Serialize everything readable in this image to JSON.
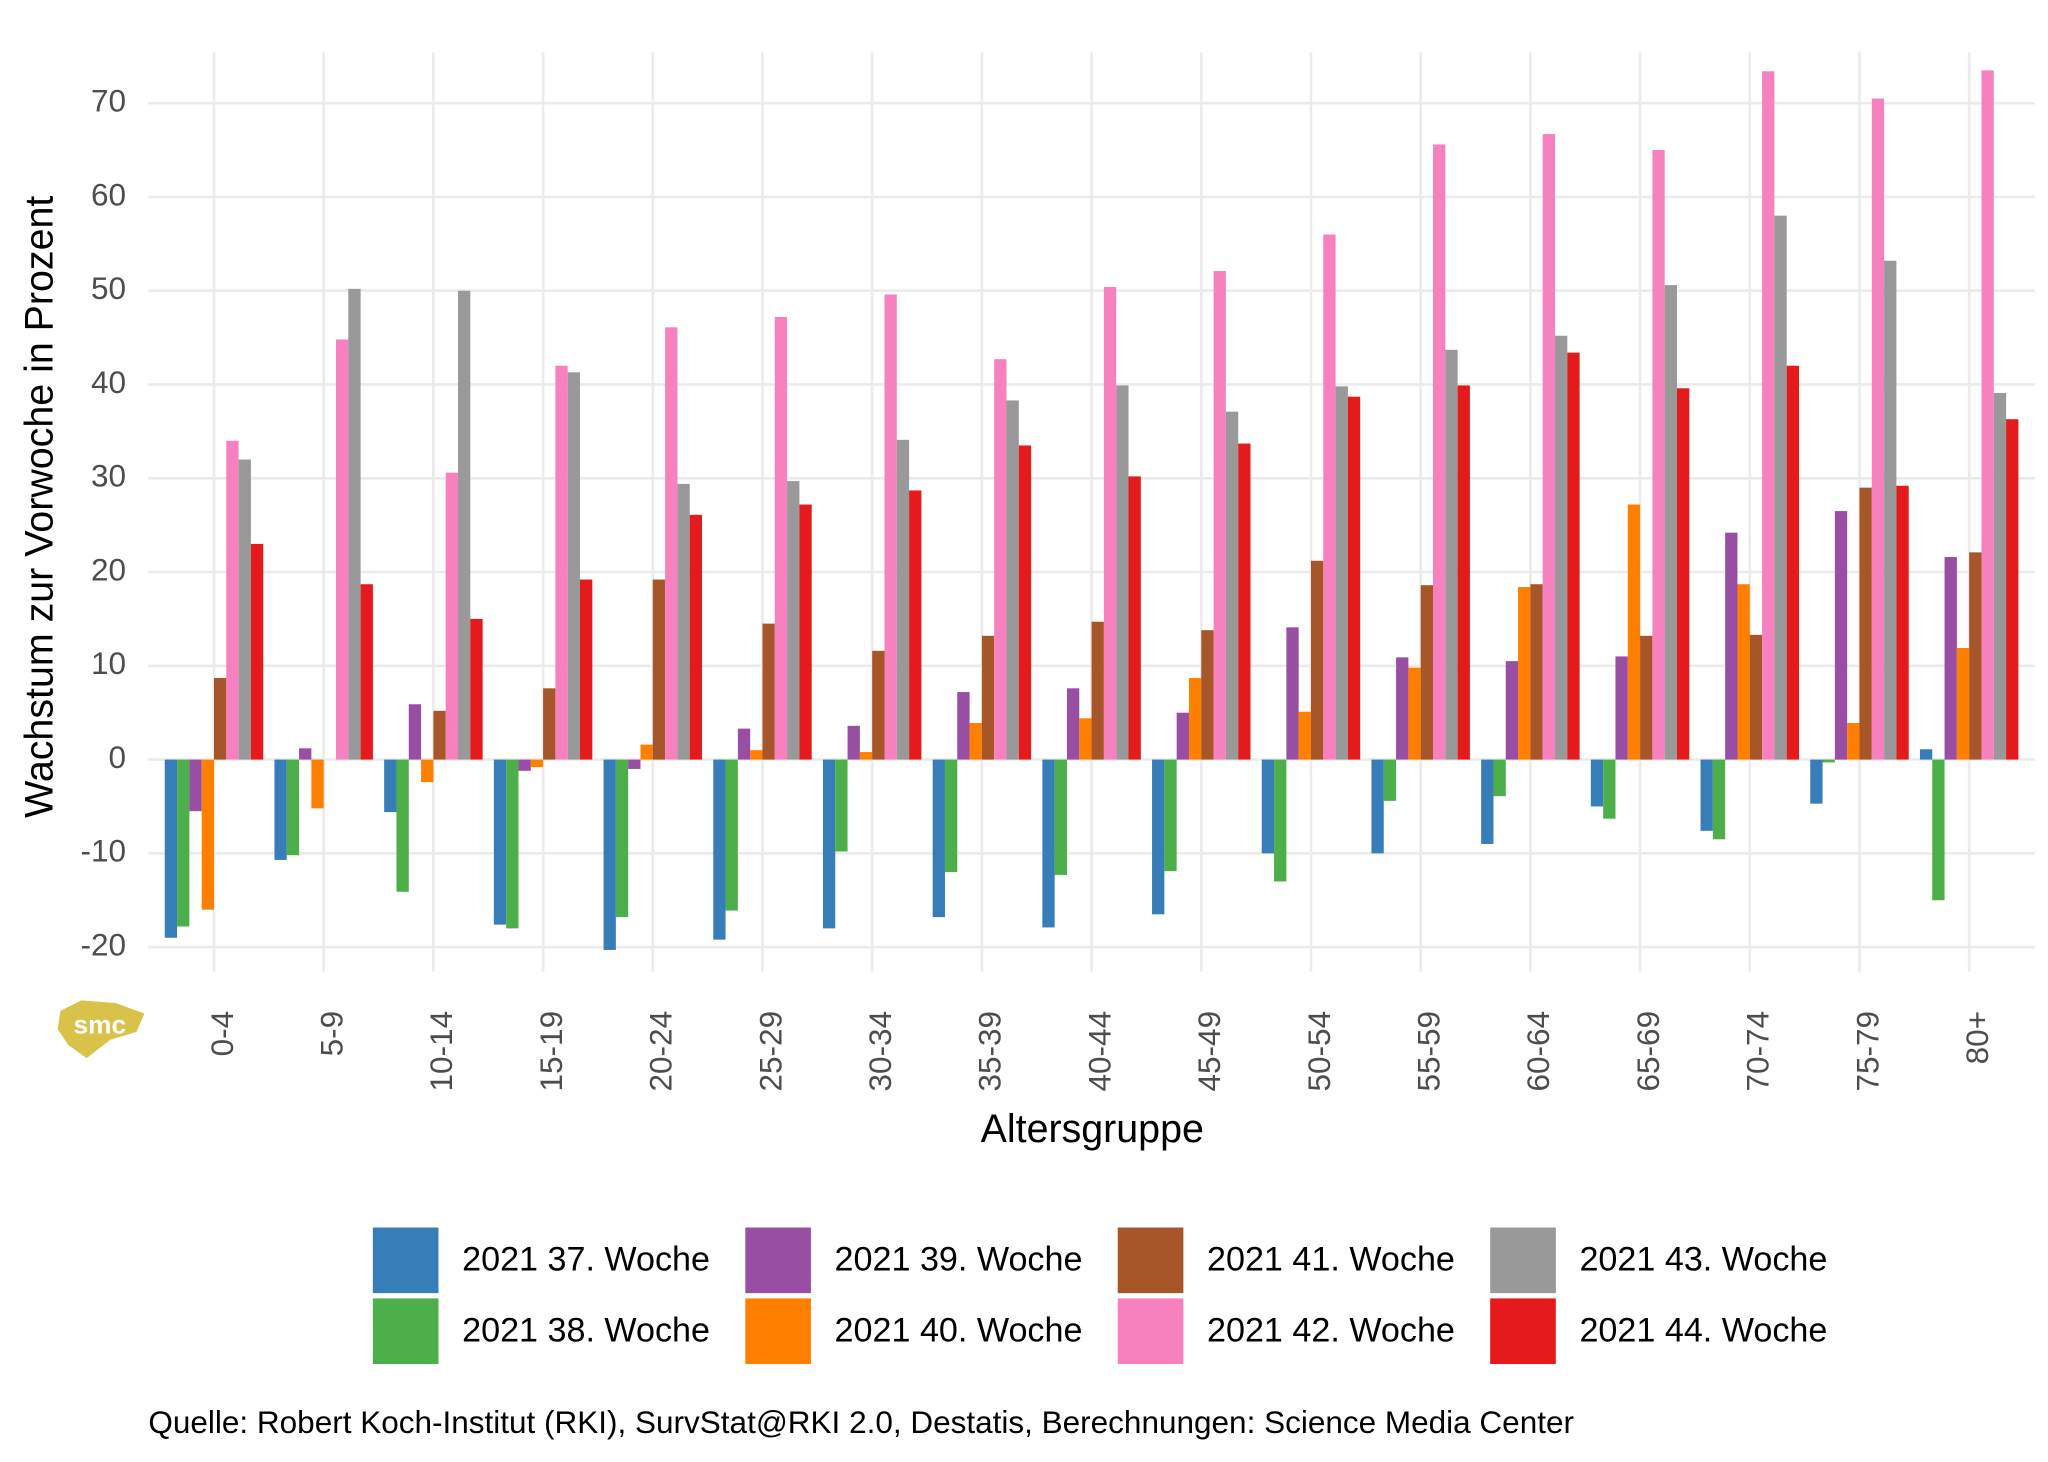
{
  "chart_data": {
    "type": "bar",
    "logo": "smc",
    "x_label": "Altersgruppe",
    "y_label": "Wachstum zur Vorwoche in Prozent",
    "caption": "Quelle: Robert Koch-Institut (RKI), SurvStat@RKI 2.0, Destatis, Berechnungen: Science Media Center",
    "categories": [
      "0-4",
      "5-9",
      "10-14",
      "15-19",
      "20-24",
      "25-29",
      "30-34",
      "35-39",
      "40-44",
      "45-49",
      "50-54",
      "55-59",
      "60-64",
      "65-69",
      "70-74",
      "75-79",
      "80+"
    ],
    "series": [
      {
        "name": "2021 37. Woche",
        "color": "#377eb8",
        "values": [
          -19,
          -10.7,
          -5.6,
          -17.6,
          -20.3,
          -19.2,
          -18,
          -16.8,
          -17.9,
          -16.5,
          -10,
          -10,
          -9,
          -5,
          -7.6,
          -4.7,
          1.1
        ]
      },
      {
        "name": "2021 38. Woche",
        "color": "#4daf4a",
        "values": [
          -17.8,
          -10.2,
          -14.1,
          -18,
          -16.8,
          -16.1,
          -9.8,
          -12,
          -12.3,
          -11.9,
          -13,
          -4.4,
          -3.9,
          -6.3,
          -8.5,
          -0.3,
          -15
        ]
      },
      {
        "name": "2021 39. Woche",
        "color": "#984ea3",
        "values": [
          -5.5,
          1.2,
          5.9,
          -1.2,
          -1,
          3.3,
          3.6,
          7.2,
          7.6,
          5,
          14.1,
          10.9,
          10.5,
          11,
          24.2,
          26.5,
          21.6
        ]
      },
      {
        "name": "2021 40. Woche",
        "color": "#ff7f00",
        "values": [
          -16,
          -5.2,
          -2.4,
          -0.8,
          1.6,
          1,
          0.8,
          3.9,
          4.4,
          8.7,
          5.1,
          9.8,
          18.4,
          27.2,
          18.7,
          3.9,
          11.9
        ]
      },
      {
        "name": "2021 41. Woche",
        "color": "#a65628",
        "values": [
          8.7,
          0,
          5.2,
          7.6,
          19.2,
          14.5,
          11.6,
          13.2,
          14.7,
          13.8,
          21.2,
          18.6,
          18.7,
          13.2,
          13.3,
          29,
          22.1
        ]
      },
      {
        "name": "2021 42. Woche",
        "color": "#f781bf",
        "values": [
          34,
          44.8,
          30.6,
          42,
          46.1,
          47.2,
          49.6,
          42.7,
          50.4,
          52.1,
          56,
          65.6,
          66.7,
          65,
          73.4,
          70.5,
          73.5
        ]
      },
      {
        "name": "2021 43. Woche",
        "color": "#999999",
        "values": [
          32,
          50.2,
          50,
          41.3,
          29.4,
          29.7,
          34.1,
          38.3,
          39.9,
          37.1,
          39.8,
          43.7,
          45.2,
          50.6,
          58,
          53.2,
          39.1
        ]
      },
      {
        "name": "2021 44. Woche",
        "color": "#e41a1c",
        "values": [
          23,
          18.7,
          15,
          19.2,
          26.1,
          27.2,
          28.7,
          33.5,
          30.2,
          33.7,
          38.7,
          39.9,
          43.4,
          39.6,
          42,
          29.2,
          36.3
        ]
      }
    ],
    "ylim": [
      -22.6,
      75.4
    ],
    "yticks": [
      -20,
      -10,
      0,
      10,
      20,
      30,
      40,
      50,
      60,
      70
    ],
    "grid": true,
    "legend": "bottom"
  }
}
